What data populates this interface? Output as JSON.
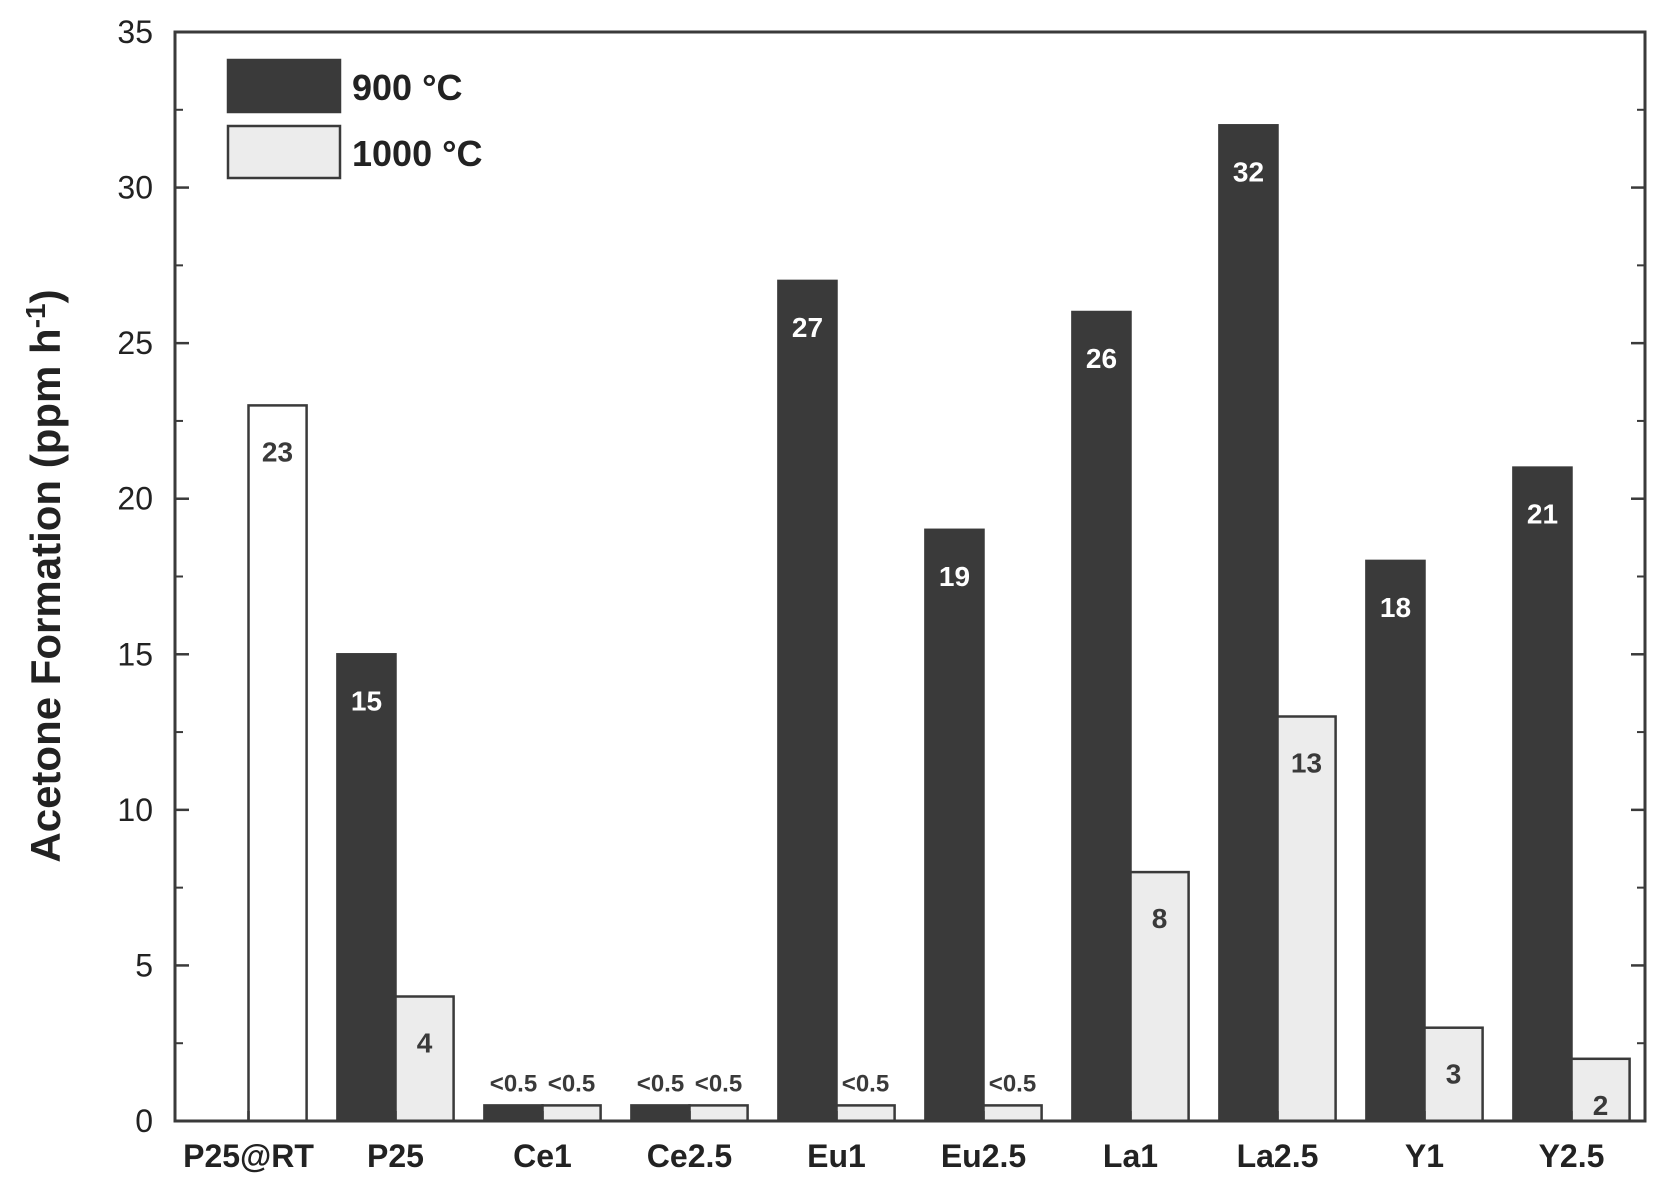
{
  "chart_data": {
    "type": "bar",
    "title": "",
    "xlabel": "",
    "ylabel": "Acetone Formation (ppm h",
    "ylabel_superscript": "-1",
    "ylabel_suffix": ")",
    "ylim": [
      0,
      35
    ],
    "yticks": [
      0,
      5,
      10,
      15,
      20,
      25,
      30,
      35
    ],
    "grid": false,
    "legend_position": "top-left",
    "categories": [
      "P25@RT",
      "P25",
      "Ce1",
      "Ce2.5",
      "Eu1",
      "Eu2.5",
      "La1",
      "La2.5",
      "Y1",
      "Y2.5"
    ],
    "series": [
      {
        "name": "900 °C",
        "color": "#3a3a3a",
        "label_color": "#ffffff",
        "values": [
          null,
          15,
          0.5,
          0.5,
          27,
          19,
          26,
          32,
          18,
          21
        ],
        "labels": [
          "",
          "15",
          "<0.5",
          "<0.5",
          "27",
          "19",
          "26",
          "32",
          "18",
          "21"
        ]
      },
      {
        "name": "1000 °C",
        "color": "#ececec",
        "label_color": "#3a3a3a",
        "values": [
          23,
          4,
          0.5,
          0.5,
          0.5,
          0.5,
          8,
          13,
          3,
          2
        ],
        "labels": [
          "23",
          "4",
          "<0.5",
          "<0.5",
          "<0.5",
          "<0.5",
          "8",
          "13",
          "3",
          "2"
        ]
      }
    ],
    "special_bars": [
      {
        "category": "P25@RT",
        "series": 1,
        "color": "#ffffff"
      }
    ]
  }
}
